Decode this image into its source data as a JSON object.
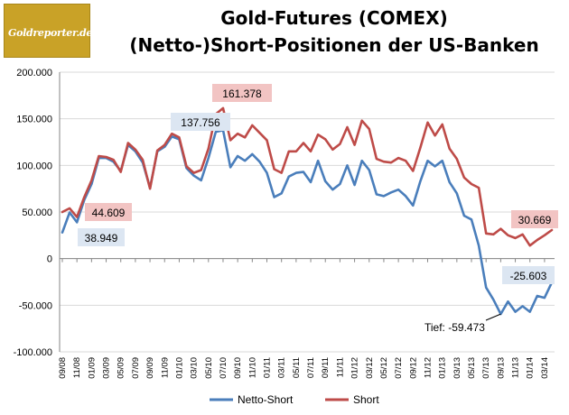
{
  "logo": {
    "text": "Goldreporter.de"
  },
  "colors": {
    "netto": "#4a7ebb",
    "short": "#be4b48",
    "netto_box": "#dce6f2",
    "short_box": "#f2c4c3",
    "grid": "#d9d9d9",
    "axis": "#868686"
  },
  "chart_data": {
    "type": "line",
    "title": "Gold-Futures (COMEX)",
    "subtitle": "(Netto-)Short-Positionen der US-Banken",
    "ylim": [
      -100000,
      200000
    ],
    "y_ticks": [
      "-100.000",
      "-50.000",
      "0",
      "50.000",
      "100.000",
      "150.000",
      "200.000"
    ],
    "x_tick_labels": [
      "09/08",
      "11/08",
      "01/09",
      "03/09",
      "05/09",
      "07/09",
      "09/09",
      "11/09",
      "01/10",
      "03/10",
      "05/10",
      "07/10",
      "09/10",
      "11/10",
      "01/11",
      "03/11",
      "05/11",
      "07/11",
      "09/11",
      "11/11",
      "01/12",
      "03/12",
      "05/12",
      "07/12",
      "09/12",
      "11/12",
      "01/13",
      "03/13",
      "05/13",
      "07/13",
      "09/13",
      "11/13",
      "01/14",
      "03/14"
    ],
    "series": [
      {
        "name": "Netto-Short",
        "color": "#4a7ebb",
        "values": [
          28000,
          49500,
          38949,
          63000,
          80000,
          108000,
          108000,
          104000,
          94000,
          122000,
          115000,
          103000,
          76000,
          115000,
          120000,
          131000,
          128000,
          97000,
          89000,
          84000,
          108000,
          136000,
          137756,
          98000,
          110000,
          105000,
          112000,
          104000,
          92000,
          66000,
          70000,
          88000,
          92000,
          93000,
          82000,
          105000,
          83000,
          74000,
          80000,
          100000,
          79000,
          105000,
          95000,
          69000,
          67000,
          71000,
          74000,
          67000,
          57000,
          83000,
          105000,
          99000,
          105000,
          82000,
          70000,
          46000,
          42000,
          14000,
          -31000,
          -44000,
          -59473,
          -46000,
          -57000,
          -51000,
          -57000,
          -40000,
          -42000,
          -25603
        ]
      },
      {
        "name": "Short",
        "color": "#be4b48",
        "values": [
          50000,
          54000,
          44609,
          66000,
          84000,
          110000,
          109000,
          106000,
          93000,
          124000,
          117000,
          106000,
          75000,
          116000,
          122000,
          134000,
          130000,
          99000,
          92000,
          95000,
          118000,
          155000,
          161378,
          127000,
          134000,
          130000,
          143000,
          135000,
          127000,
          96000,
          92000,
          115000,
          115000,
          124000,
          115000,
          133000,
          128000,
          117000,
          123000,
          141000,
          122000,
          148000,
          139000,
          107000,
          104000,
          103000,
          108000,
          105000,
          94000,
          119000,
          146000,
          132000,
          144000,
          118000,
          107000,
          87000,
          80000,
          76000,
          27000,
          26000,
          32000,
          25000,
          22000,
          26000,
          14000,
          20000,
          25000,
          30669
        ]
      }
    ],
    "annotations": [
      {
        "label": "161.378",
        "series": "Short",
        "style": "short-box"
      },
      {
        "label": "137.756",
        "series": "Netto-Short",
        "style": "netto-box"
      },
      {
        "label": "44.609",
        "series": "Short",
        "style": "short-box"
      },
      {
        "label": "38.949",
        "series": "Netto-Short",
        "style": "netto-box"
      },
      {
        "label": "30.669",
        "series": "Short",
        "style": "short-box"
      },
      {
        "label": "-25.603",
        "series": "Netto-Short",
        "style": "netto-box"
      },
      {
        "label": "Tief: -59.473",
        "series": "Netto-Short",
        "style": "plain"
      }
    ],
    "legend": {
      "position": "bottom",
      "entries": [
        "Netto-Short",
        "Short"
      ]
    },
    "grid": true
  }
}
